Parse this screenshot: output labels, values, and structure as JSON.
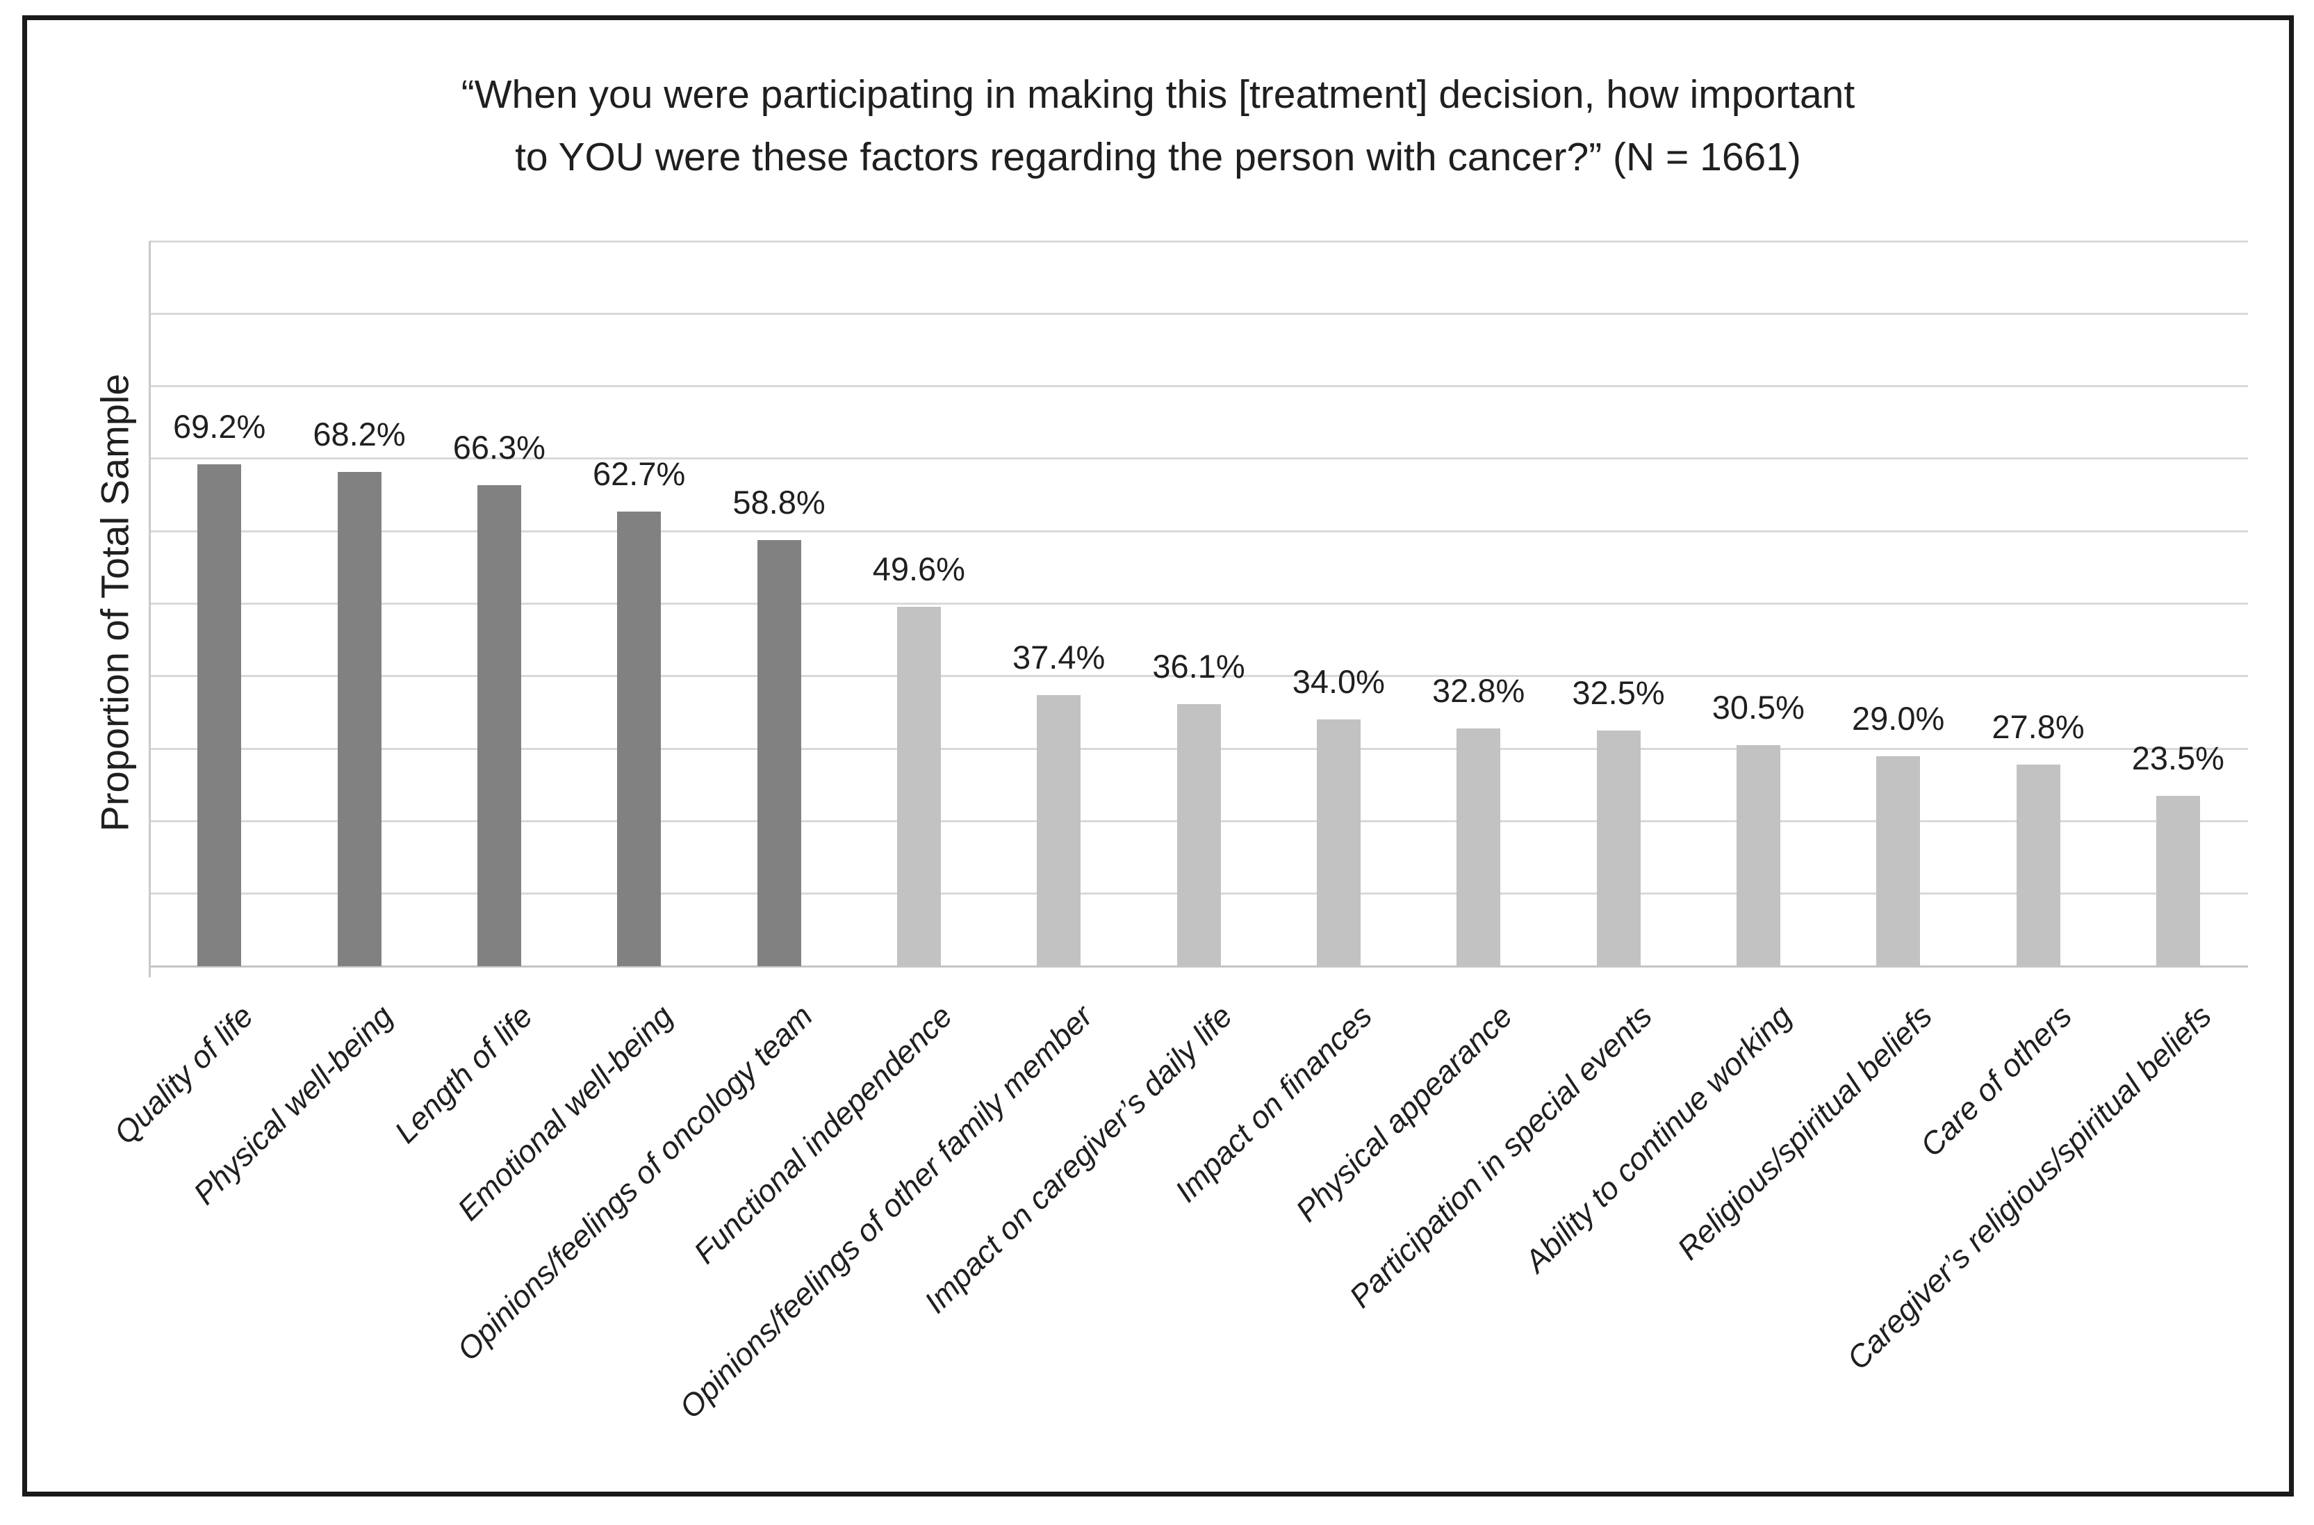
{
  "figure": {
    "title_line1": "“When you were participating in making this [treatment] decision, how important",
    "title_line2": "to YOU were these factors regarding the person with cancer?” (N = 1661)"
  },
  "chart_data": {
    "type": "bar",
    "title": "“When you were participating in making this [treatment] decision, how important to YOU were these factors regarding the person with cancer?” (N = 1661)",
    "xlabel": "",
    "ylabel": "Proportion of Total Sample",
    "categories": [
      "Quality of life",
      "Physical well-being",
      "Length of life",
      "Emotional well-being",
      "Opinions/feelings of oncology team",
      "Functional independence",
      "Opinions/feelings of other family member",
      "Impact on caregiver’s daily life",
      "Impact on finances",
      "Physical appearance",
      "Participation in special events",
      "Ability to continue working",
      "Religious/spiritual beliefs",
      "Care of others",
      "Caregiver’s religious/spiritual beliefs"
    ],
    "values": [
      69.2,
      68.2,
      66.3,
      62.7,
      58.8,
      49.6,
      37.4,
      36.1,
      34.0,
      32.8,
      32.5,
      30.5,
      29.0,
      27.8,
      23.5
    ],
    "value_labels": [
      "69.2%",
      "68.2%",
      "66.3%",
      "62.7%",
      "58.8%",
      "49.6%",
      "37.4%",
      "36.1%",
      "34.0%",
      "32.8%",
      "32.5%",
      "30.5%",
      "29.0%",
      "27.8%",
      "23.5%"
    ],
    "bar_color_groups": [
      "dark",
      "dark",
      "dark",
      "dark",
      "dark",
      "light",
      "light",
      "light",
      "light",
      "light",
      "light",
      "light",
      "light",
      "light",
      "light"
    ],
    "ylim": [
      0,
      100
    ],
    "gridline_step_pct": 10,
    "grid": "horizontal-only",
    "y_tick_labels_shown": false,
    "legend": "none",
    "colors": {
      "dark_bar": "#818181",
      "light_bar": "#c2c2c2",
      "gridline": "#d9d9d9",
      "baseline": "#c4c4c4",
      "axis_line": "#c9c9c9",
      "text": "#1f1f1f",
      "frame_border": "#1a1a1a"
    }
  }
}
